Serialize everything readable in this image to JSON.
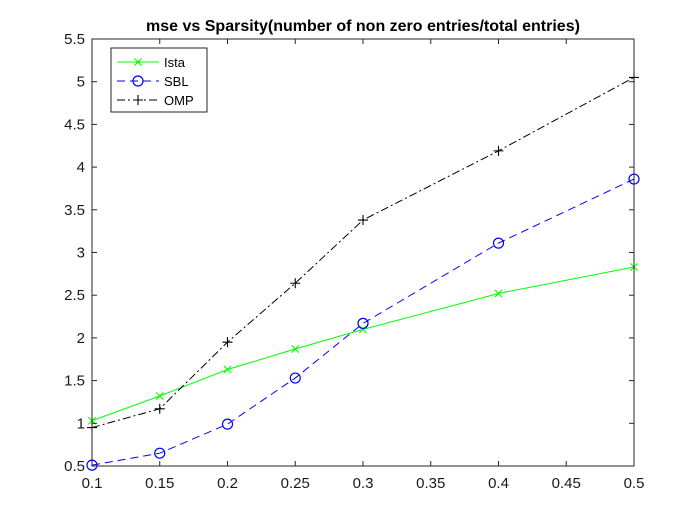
{
  "chart_data": {
    "type": "line",
    "title": "mse vs Sparsity(number of non zero entries/total entries)",
    "xlabel": "",
    "ylabel": "",
    "xlim": [
      0.1,
      0.5
    ],
    "ylim": [
      0.5,
      5.5
    ],
    "x_ticks": [
      "0.1",
      "0.15",
      "0.2",
      "0.25",
      "0.3",
      "0.35",
      "0.4",
      "0.45",
      "0.5"
    ],
    "y_ticks": [
      "0.5",
      "1",
      "1.5",
      "2",
      "2.5",
      "3",
      "3.5",
      "4",
      "4.5",
      "5",
      "5.5"
    ],
    "grid": false,
    "legend_position": "top-left",
    "series": [
      {
        "name": "Ista",
        "color": "#00ff00",
        "line_style": "solid",
        "marker": "x",
        "x": [
          0.1,
          0.15,
          0.2,
          0.25,
          0.3,
          0.4,
          0.5
        ],
        "y": [
          1.03,
          1.32,
          1.63,
          1.87,
          2.1,
          2.52,
          2.83
        ]
      },
      {
        "name": "SBL",
        "color": "#0000ff",
        "line_style": "dashed",
        "marker": "circle",
        "x": [
          0.1,
          0.15,
          0.2,
          0.25,
          0.3,
          0.4,
          0.5
        ],
        "y": [
          0.51,
          0.65,
          0.99,
          1.53,
          2.17,
          3.11,
          3.86
        ]
      },
      {
        "name": "OMP",
        "color": "#000000",
        "line_style": "dashdot",
        "marker": "plus",
        "x": [
          0.1,
          0.15,
          0.2,
          0.25,
          0.3,
          0.4,
          0.5
        ],
        "y": [
          0.95,
          1.17,
          1.95,
          2.64,
          3.38,
          4.19,
          5.05
        ]
      }
    ]
  }
}
